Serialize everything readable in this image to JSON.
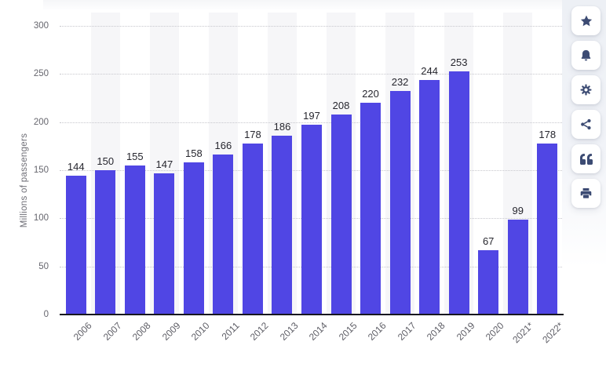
{
  "chart_data": {
    "type": "bar",
    "title": "",
    "xlabel": "",
    "ylabel": "Millions of passengers",
    "categories": [
      "2006",
      "2007",
      "2008",
      "2009",
      "2010",
      "2011",
      "2012",
      "2013",
      "2014",
      "2015",
      "2016",
      "2017",
      "2018",
      "2019",
      "2020",
      "2021*",
      "2022*"
    ],
    "values": [
      144,
      150,
      155,
      147,
      158,
      166,
      178,
      186,
      197,
      208,
      220,
      232,
      244,
      253,
      67,
      99,
      178
    ],
    "ylim": [
      0,
      300
    ],
    "yticks": [
      0,
      50,
      100,
      150,
      200,
      250,
      300
    ],
    "grid": "horizontal-dotted",
    "legend": "none",
    "bar_color": "#5046e4",
    "stripe_color": "#f6f6f8",
    "value_label_color": "#26262e",
    "axis_text_color": "#66666e",
    "axis_line_color": "#17171f"
  },
  "toolbar": {
    "icon_color": "#3c4b73",
    "buttons": [
      {
        "name": "favorite",
        "icon": "star-icon"
      },
      {
        "name": "notifications",
        "icon": "bell-icon"
      },
      {
        "name": "settings",
        "icon": "gear-icon"
      },
      {
        "name": "share",
        "icon": "share-icon"
      },
      {
        "name": "cite",
        "icon": "quote-icon"
      },
      {
        "name": "print",
        "icon": "printer-icon"
      }
    ]
  }
}
